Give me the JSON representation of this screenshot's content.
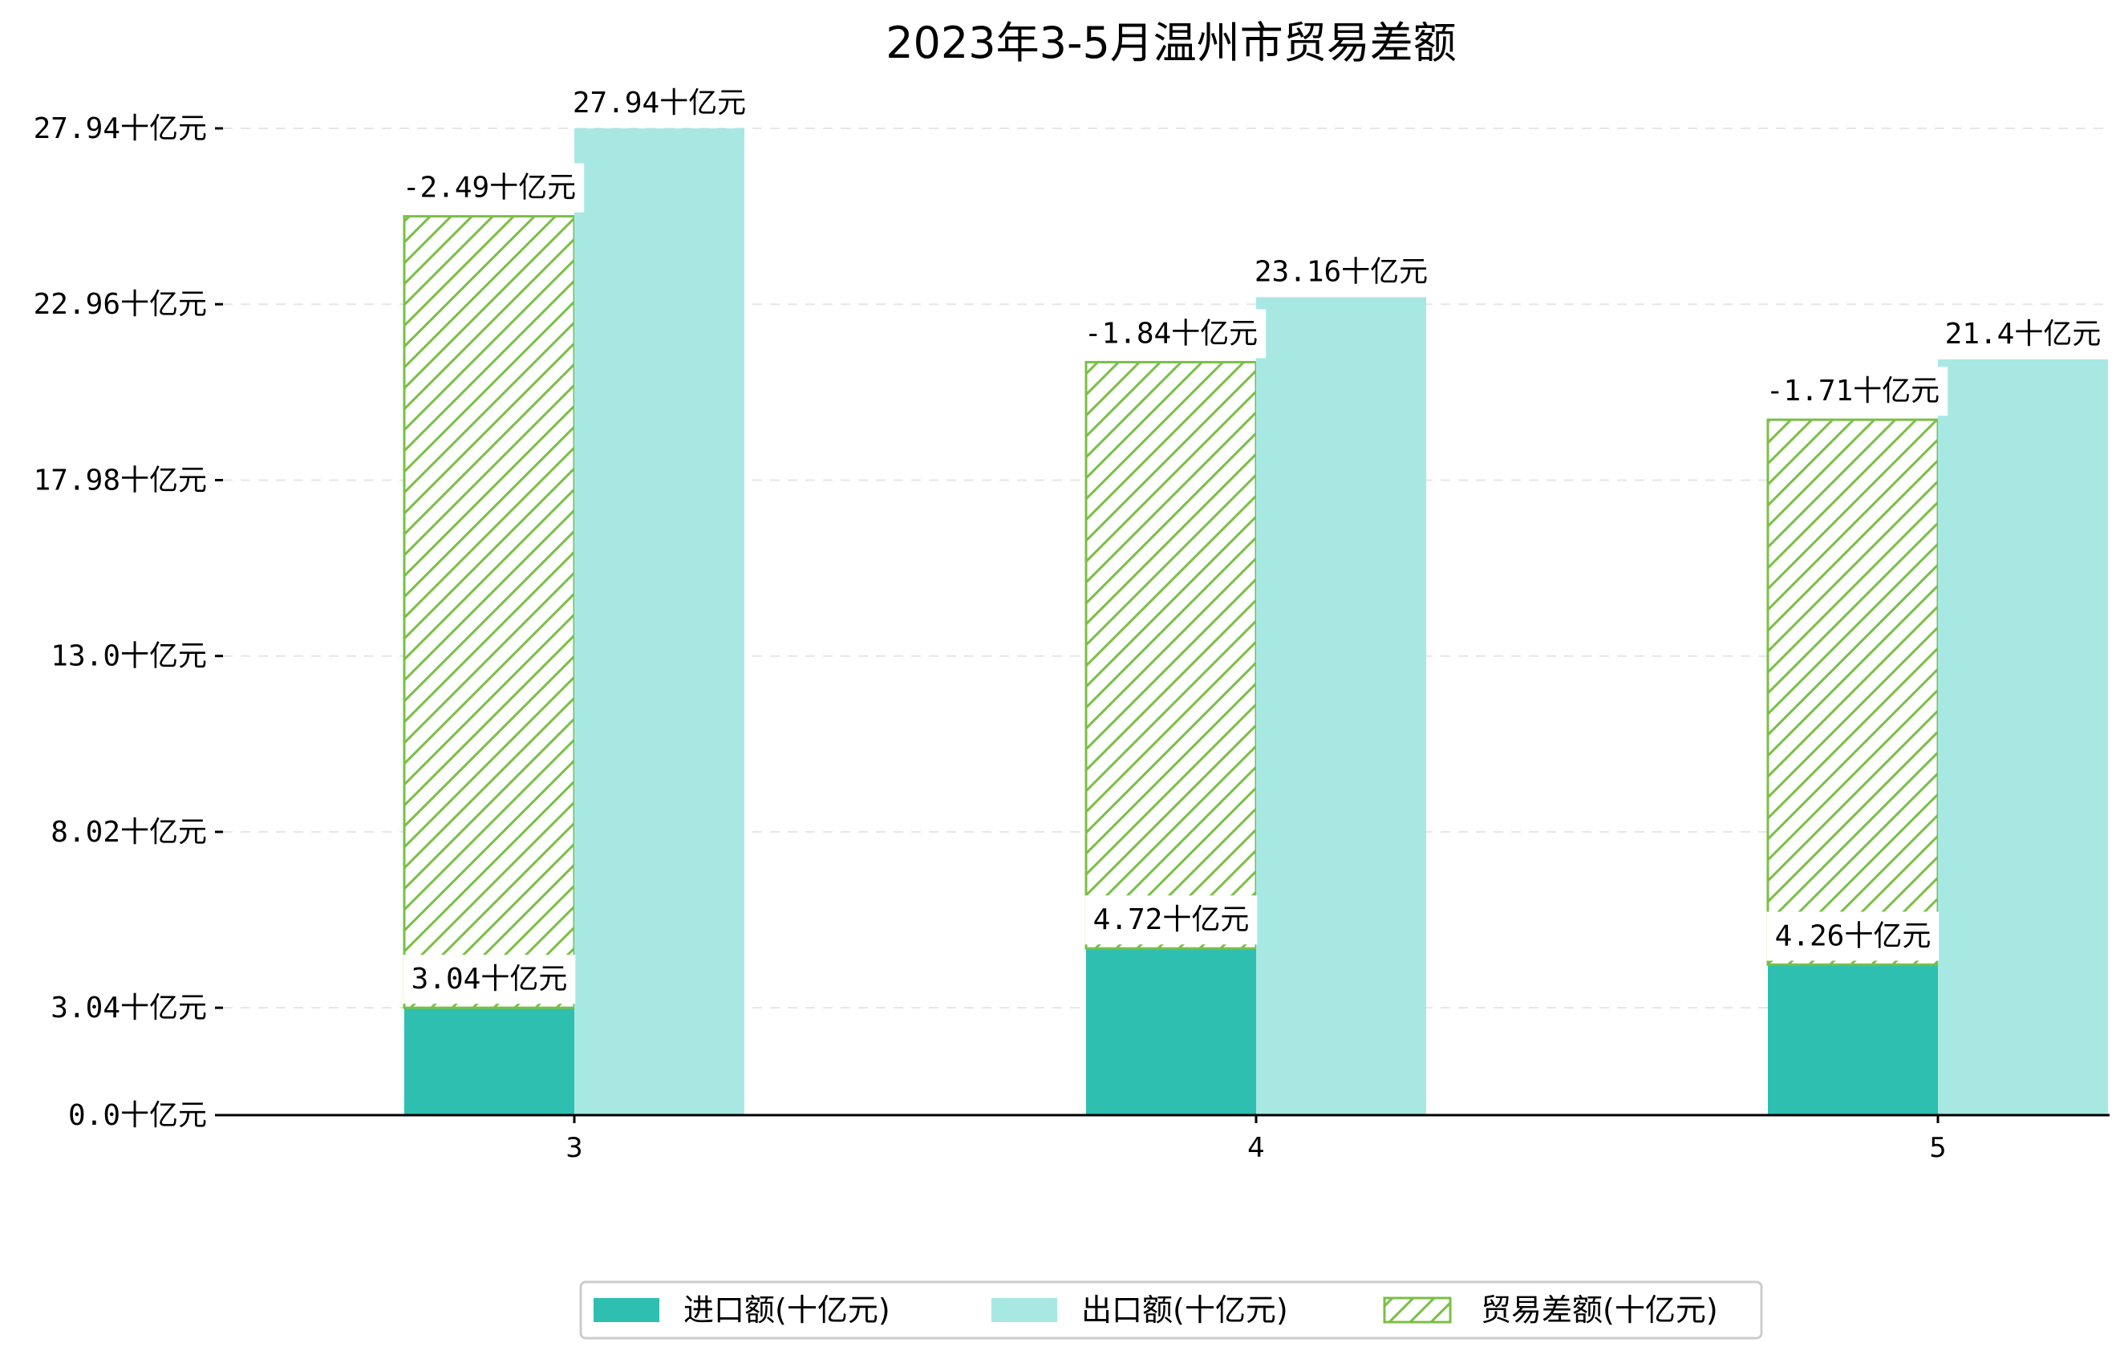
{
  "chart_data": {
    "type": "bar",
    "title": "2023年3-5月温州市贸易差额",
    "xlabel": "",
    "ylabel": "",
    "categories": [
      "3",
      "4",
      "5"
    ],
    "unit_suffix": "十亿元",
    "yticks": [
      "0.0十亿元",
      "3.04十亿元",
      "8.02十亿元",
      "13.0十亿元",
      "17.98十亿元",
      "22.96十亿元",
      "27.94十亿元"
    ],
    "ytick_values": [
      0.0,
      3.04,
      8.02,
      13.0,
      17.98,
      22.96,
      27.94
    ],
    "ylim": [
      0,
      28.5
    ],
    "grid": true,
    "legend_position": "bottom-center",
    "series": [
      {
        "name": "进口额(十亿元)",
        "values": [
          3.04,
          4.72,
          4.26
        ],
        "labels": [
          "3.04十亿元",
          "4.72十亿元",
          "4.26十亿元"
        ],
        "color": "#2ebfb1"
      },
      {
        "name": "出口额(十亿元)",
        "values": [
          27.94,
          23.16,
          21.4
        ],
        "labels": [
          "27.94十亿元",
          "23.16十亿元",
          "21.4十亿元"
        ],
        "color": "#a8e8e2"
      },
      {
        "name": "贸易差额(十亿元)",
        "values": [
          -2.49,
          -1.84,
          -1.71
        ],
        "labels": [
          "-2.49十亿元",
          "-1.84十亿元",
          "-1.71十亿元"
        ],
        "color": "#7abf45",
        "hatch": "diagonal"
      }
    ]
  }
}
